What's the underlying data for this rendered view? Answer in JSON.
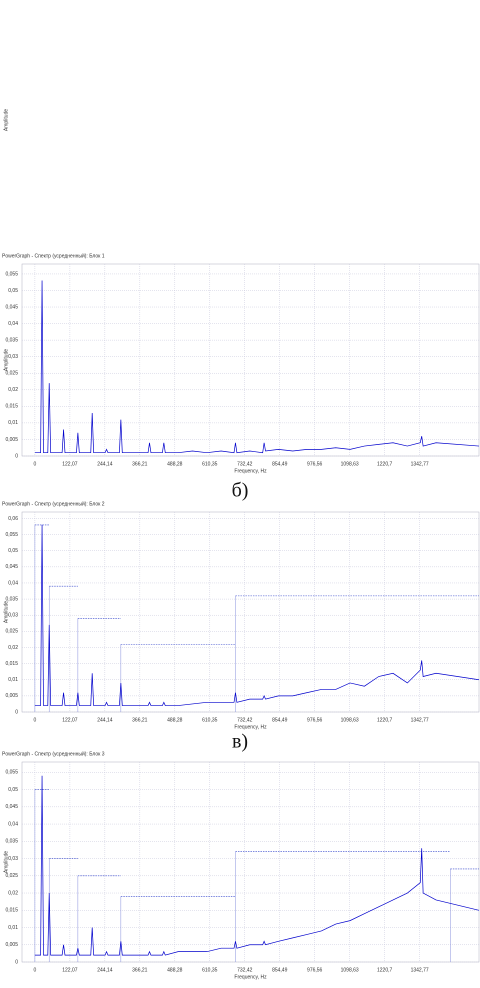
{
  "top_fragment": {
    "y_label": "Amplitude"
  },
  "captions": [
    "б)",
    "в)"
  ],
  "chart_data": [
    {
      "type": "line",
      "title": "PowerGraph - Спектр (усредненный): Блок 1",
      "x_label": "Frequency, Hz",
      "y_label": "Amplitude",
      "grid": true,
      "xlim": [
        -45,
        1550
      ],
      "ylim": [
        0,
        0.058
      ],
      "xticks": [
        0,
        {
          "value": 122.07,
          "label": "122,07"
        },
        {
          "value": 244.14,
          "label": "244,14"
        },
        {
          "value": 366.21,
          "label": "366,21"
        },
        {
          "value": 488.28,
          "label": "488,28"
        },
        {
          "value": 610.35,
          "label": "610,35"
        },
        {
          "value": 732.42,
          "label": "732,42"
        },
        {
          "value": 854.49,
          "label": "854,49"
        },
        {
          "value": 976.56,
          "label": "976,56"
        },
        {
          "value": 1098.63,
          "label": "1098,63"
        },
        {
          "value": 1220.7,
          "label": "1220,7"
        },
        {
          "value": 1342.77,
          "label": "1342,77"
        }
      ],
      "yticks": [
        0,
        {
          "value": 0.005,
          "label": "0,005"
        },
        {
          "value": 0.01,
          "label": "0,01"
        },
        {
          "value": 0.015,
          "label": "0,015"
        },
        {
          "value": 0.02,
          "label": "0,02"
        },
        {
          "value": 0.025,
          "label": "0,025"
        },
        {
          "value": 0.03,
          "label": "0,03"
        },
        {
          "value": 0.035,
          "label": "0,035"
        },
        {
          "value": 0.04,
          "label": "0,04"
        },
        {
          "value": 0.045,
          "label": "0,045"
        },
        {
          "value": 0.05,
          "label": "0,05"
        },
        {
          "value": 0.055,
          "label": "0,055"
        }
      ],
      "x": [
        0,
        20,
        25,
        30,
        45,
        50,
        55,
        80,
        95,
        100,
        105,
        130,
        145,
        150,
        155,
        180,
        195,
        200,
        205,
        230,
        245,
        250,
        255,
        280,
        295,
        300,
        305,
        340,
        380,
        395,
        400,
        405,
        440,
        445,
        450,
        455,
        500,
        550,
        600,
        650,
        695,
        700,
        705,
        750,
        795,
        800,
        805,
        850,
        900,
        950,
        1000,
        1050,
        1100,
        1150,
        1200,
        1250,
        1300,
        1345,
        1350,
        1355,
        1400,
        1550
      ],
      "series": [
        {
          "color": "#0000cc",
          "values": [
            0.001,
            0.001,
            0.053,
            0.001,
            0.001,
            0.022,
            0.001,
            0.001,
            0.001,
            0.008,
            0.001,
            0.001,
            0.001,
            0.007,
            0.001,
            0.001,
            0.001,
            0.013,
            0.001,
            0.001,
            0.001,
            0.002,
            0.001,
            0.001,
            0.001,
            0.011,
            0.001,
            0.001,
            0.001,
            0.001,
            0.004,
            0.001,
            0.001,
            0.001,
            0.004,
            0.001,
            0.001,
            0.0015,
            0.001,
            0.0015,
            0.001,
            0.004,
            0.001,
            0.0015,
            0.001,
            0.004,
            0.0015,
            0.002,
            0.0015,
            0.002,
            0.002,
            0.0025,
            0.002,
            0.003,
            0.0035,
            0.004,
            0.003,
            0.004,
            0.006,
            0.003,
            0.004,
            0.003
          ]
        }
      ]
    },
    {
      "type": "line",
      "title": "PowerGraph - Спектр (усредненный): Блок 2",
      "x_label": "Frequency, Hz",
      "y_label": "Amplitude",
      "grid": true,
      "xlim": [
        -45,
        1550
      ],
      "ylim": [
        0,
        0.062
      ],
      "xticks": [
        0,
        {
          "value": 122.07,
          "label": "122,07"
        },
        {
          "value": 244.14,
          "label": "244,14"
        },
        {
          "value": 366.21,
          "label": "366,21"
        },
        {
          "value": 488.28,
          "label": "488,28"
        },
        {
          "value": 610.35,
          "label": "610,35"
        },
        {
          "value": 732.42,
          "label": "732,42"
        },
        {
          "value": 854.49,
          "label": "854,49"
        },
        {
          "value": 976.56,
          "label": "976,56"
        },
        {
          "value": 1098.63,
          "label": "1098,63"
        },
        {
          "value": 1220.7,
          "label": "1220,7"
        },
        {
          "value": 1342.77,
          "label": "1342,77"
        }
      ],
      "yticks": [
        0,
        {
          "value": 0.005,
          "label": "0,005"
        },
        {
          "value": 0.01,
          "label": "0,01"
        },
        {
          "value": 0.015,
          "label": "0,015"
        },
        {
          "value": 0.02,
          "label": "0,02"
        },
        {
          "value": 0.025,
          "label": "0,025"
        },
        {
          "value": 0.03,
          "label": "0,03"
        },
        {
          "value": 0.035,
          "label": "0,035"
        },
        {
          "value": 0.04,
          "label": "0,04"
        },
        {
          "value": 0.045,
          "label": "0,045"
        },
        {
          "value": 0.05,
          "label": "0,05"
        },
        {
          "value": 0.055,
          "label": "0,055"
        },
        {
          "value": 0.06,
          "label": "0,06"
        }
      ],
      "x": [
        0,
        20,
        25,
        30,
        45,
        50,
        55,
        80,
        95,
        100,
        105,
        130,
        145,
        150,
        155,
        180,
        195,
        200,
        205,
        230,
        245,
        250,
        255,
        280,
        295,
        300,
        305,
        340,
        380,
        395,
        400,
        405,
        440,
        445,
        450,
        455,
        500,
        550,
        600,
        650,
        695,
        700,
        705,
        750,
        795,
        800,
        805,
        850,
        900,
        950,
        1000,
        1050,
        1100,
        1150,
        1200,
        1250,
        1300,
        1345,
        1350,
        1355,
        1400,
        1550
      ],
      "series": [
        {
          "color": "#0000cc",
          "values": [
            0.002,
            0.002,
            0.058,
            0.002,
            0.002,
            0.027,
            0.002,
            0.002,
            0.002,
            0.006,
            0.002,
            0.002,
            0.002,
            0.006,
            0.002,
            0.002,
            0.002,
            0.012,
            0.002,
            0.002,
            0.002,
            0.003,
            0.002,
            0.002,
            0.002,
            0.009,
            0.002,
            0.002,
            0.002,
            0.002,
            0.003,
            0.002,
            0.002,
            0.002,
            0.003,
            0.002,
            0.002,
            0.0025,
            0.003,
            0.003,
            0.003,
            0.006,
            0.003,
            0.004,
            0.004,
            0.005,
            0.004,
            0.005,
            0.005,
            0.006,
            0.007,
            0.007,
            0.009,
            0.008,
            0.011,
            0.012,
            0.009,
            0.013,
            0.016,
            0.011,
            0.012,
            0.01
          ]
        }
      ],
      "steps": [
        {
          "range": [
            0,
            50
          ],
          "value": 0.058
        },
        {
          "range": [
            50,
            150
          ],
          "value": 0.039
        },
        {
          "range": [
            150,
            300
          ],
          "value": 0.029
        },
        {
          "range": [
            300,
            700
          ],
          "value": 0.021
        },
        {
          "range": [
            700,
            1550
          ],
          "value": 0.036
        }
      ]
    },
    {
      "type": "line",
      "title": "PowerGraph - Спектр (усредненный): Блок 3",
      "x_label": "Frequency, Hz",
      "y_label": "Amplitude",
      "grid": true,
      "xlim": [
        -45,
        1550
      ],
      "ylim": [
        0,
        0.058
      ],
      "xticks": [
        0,
        {
          "value": 122.07,
          "label": "122,07"
        },
        {
          "value": 244.14,
          "label": "244,14"
        },
        {
          "value": 366.21,
          "label": "366,21"
        },
        {
          "value": 488.28,
          "label": "488,28"
        },
        {
          "value": 610.35,
          "label": "610,35"
        },
        {
          "value": 732.42,
          "label": "732,42"
        },
        {
          "value": 854.49,
          "label": "854,49"
        },
        {
          "value": 976.56,
          "label": "976,56"
        },
        {
          "value": 1098.63,
          "label": "1098,63"
        },
        {
          "value": 1220.7,
          "label": "1220,7"
        },
        {
          "value": 1342.77,
          "label": "1342,77"
        }
      ],
      "yticks": [
        0,
        {
          "value": 0.005,
          "label": "0,005"
        },
        {
          "value": 0.01,
          "label": "0,01"
        },
        {
          "value": 0.015,
          "label": "0,015"
        },
        {
          "value": 0.02,
          "label": "0,02"
        },
        {
          "value": 0.025,
          "label": "0,025"
        },
        {
          "value": 0.03,
          "label": "0,03"
        },
        {
          "value": 0.035,
          "label": "0,035"
        },
        {
          "value": 0.04,
          "label": "0,04"
        },
        {
          "value": 0.045,
          "label": "0,045"
        },
        {
          "value": 0.05,
          "label": "0,05"
        },
        {
          "value": 0.055,
          "label": "0,055"
        }
      ],
      "x": [
        0,
        20,
        25,
        30,
        45,
        50,
        55,
        80,
        95,
        100,
        105,
        130,
        145,
        150,
        155,
        180,
        195,
        200,
        205,
        230,
        245,
        250,
        255,
        280,
        295,
        300,
        305,
        340,
        380,
        395,
        400,
        405,
        440,
        445,
        450,
        455,
        500,
        550,
        600,
        650,
        695,
        700,
        705,
        750,
        795,
        800,
        805,
        850,
        900,
        950,
        1000,
        1050,
        1100,
        1150,
        1200,
        1250,
        1300,
        1345,
        1350,
        1355,
        1400,
        1550
      ],
      "series": [
        {
          "color": "#0000cc",
          "values": [
            0.002,
            0.002,
            0.054,
            0.002,
            0.002,
            0.02,
            0.002,
            0.002,
            0.002,
            0.005,
            0.002,
            0.002,
            0.002,
            0.004,
            0.002,
            0.002,
            0.002,
            0.01,
            0.002,
            0.002,
            0.002,
            0.003,
            0.002,
            0.002,
            0.002,
            0.006,
            0.002,
            0.002,
            0.002,
            0.002,
            0.003,
            0.002,
            0.002,
            0.002,
            0.003,
            0.002,
            0.003,
            0.003,
            0.003,
            0.004,
            0.004,
            0.006,
            0.004,
            0.005,
            0.005,
            0.006,
            0.005,
            0.006,
            0.007,
            0.008,
            0.009,
            0.011,
            0.012,
            0.014,
            0.016,
            0.018,
            0.02,
            0.023,
            0.033,
            0.02,
            0.018,
            0.015
          ]
        }
      ],
      "steps": [
        {
          "range": [
            0,
            50
          ],
          "value": 0.05
        },
        {
          "range": [
            50,
            150
          ],
          "value": 0.03
        },
        {
          "range": [
            150,
            300
          ],
          "value": 0.025
        },
        {
          "range": [
            300,
            700
          ],
          "value": 0.019
        },
        {
          "range": [
            700,
            1450
          ],
          "value": 0.032
        },
        {
          "range": [
            1450,
            1550
          ],
          "value": 0.027
        }
      ]
    }
  ]
}
